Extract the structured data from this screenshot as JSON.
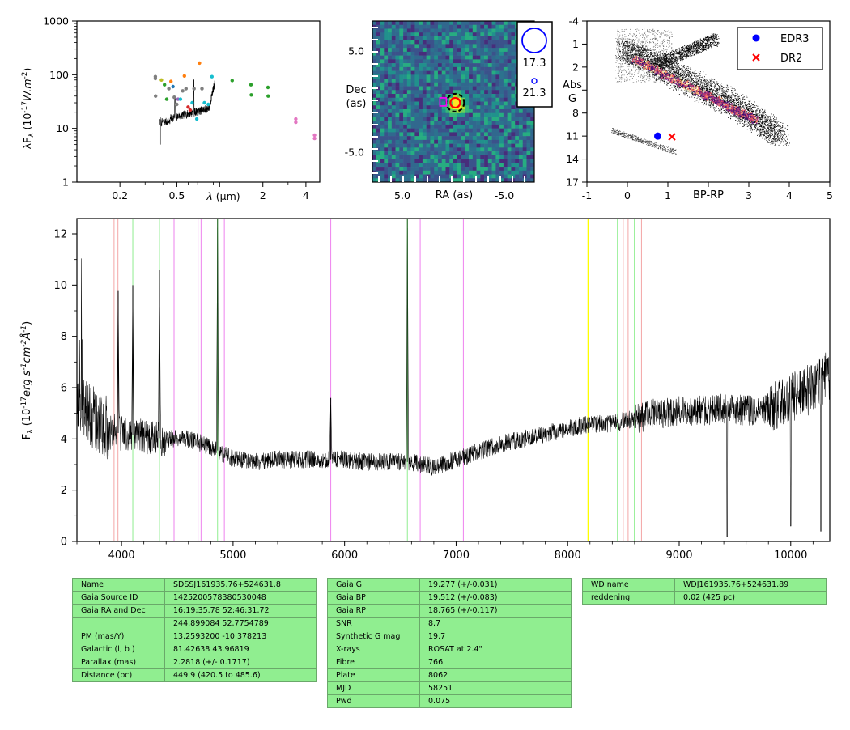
{
  "sed_panel": {
    "ylabel": "λF_λ (10^-17 W.m^-2)",
    "xlabel": "λ (μm)",
    "ytick_labels": [
      "1",
      "10",
      "100",
      "1000"
    ],
    "xtick_labels": [
      "0.2",
      "0.5",
      "2",
      "4"
    ],
    "points": [
      {
        "x": 0.354,
        "y": 92,
        "c": "#7f7f7f"
      },
      {
        "x": 0.354,
        "y": 85,
        "c": "#7f7f7f"
      },
      {
        "x": 0.355,
        "y": 40,
        "c": "#7f7f7f"
      },
      {
        "x": 0.39,
        "y": 80,
        "c": "#bcbd22"
      },
      {
        "x": 0.41,
        "y": 65,
        "c": "#2ca02c"
      },
      {
        "x": 0.425,
        "y": 35,
        "c": "#2ca02c"
      },
      {
        "x": 0.44,
        "y": 55,
        "c": "#7f7f7f"
      },
      {
        "x": 0.455,
        "y": 75,
        "c": "#ff7f0e"
      },
      {
        "x": 0.47,
        "y": 60,
        "c": "#1f77b4"
      },
      {
        "x": 0.48,
        "y": 38,
        "c": "#7f7f7f"
      },
      {
        "x": 0.5,
        "y": 28,
        "c": "#7f7f7f"
      },
      {
        "x": 0.51,
        "y": 35,
        "c": "#9467bd"
      },
      {
        "x": 0.53,
        "y": 35,
        "c": "#17becf"
      },
      {
        "x": 0.55,
        "y": 50,
        "c": "#7f7f7f"
      },
      {
        "x": 0.565,
        "y": 95,
        "c": "#ff7f0e"
      },
      {
        "x": 0.58,
        "y": 55,
        "c": "#7f7f7f"
      },
      {
        "x": 0.6,
        "y": 25,
        "c": "#d62728"
      },
      {
        "x": 0.62,
        "y": 22,
        "c": "#d62728"
      },
      {
        "x": 0.64,
        "y": 30,
        "c": "#17becf"
      },
      {
        "x": 0.66,
        "y": 55,
        "c": "#7f7f7f"
      },
      {
        "x": 0.69,
        "y": 15,
        "c": "#17becf"
      },
      {
        "x": 0.72,
        "y": 165,
        "c": "#ff7f0e"
      },
      {
        "x": 0.75,
        "y": 55,
        "c": "#7f7f7f"
      },
      {
        "x": 0.78,
        "y": 30,
        "c": "#17becf"
      },
      {
        "x": 0.83,
        "y": 28,
        "c": "#17becf"
      },
      {
        "x": 0.88,
        "y": 92,
        "c": "#17becf"
      },
      {
        "x": 1.22,
        "y": 78,
        "c": "#2ca02c"
      },
      {
        "x": 1.65,
        "y": 65,
        "c": "#2ca02c"
      },
      {
        "x": 1.66,
        "y": 42,
        "c": "#2ca02c"
      },
      {
        "x": 2.17,
        "y": 58,
        "c": "#2ca02c"
      },
      {
        "x": 2.18,
        "y": 40,
        "c": "#2ca02c"
      },
      {
        "x": 3.4,
        "y": 15,
        "c": "#e377c2"
      },
      {
        "x": 3.4,
        "y": 13,
        "c": "#e377c2"
      },
      {
        "x": 4.6,
        "y": 7.5,
        "c": "#e377c2"
      },
      {
        "x": 4.6,
        "y": 6.5,
        "c": "#e377c2"
      }
    ]
  },
  "image_panel": {
    "xlabel": "RA (as)",
    "ylabel_1": "Dec",
    "ylabel_2": "(as)",
    "xtick_labels": [
      "5.0",
      "-5.0"
    ],
    "ytick_labels": [
      "5.0",
      "-5.0"
    ],
    "legend": {
      "big": "17.3",
      "small": "21.3"
    },
    "colors": {
      "circle": "#0000ff",
      "target": "#ff0000",
      "marker": "#ff00ff"
    }
  },
  "hrd_panel": {
    "xlabel": "BP-RP",
    "ylabel_1": "Abs",
    "ylabel_2": "G",
    "xtick_labels": [
      "-1",
      "0",
      "1",
      "2",
      "3",
      "4",
      "5"
    ],
    "ytick_labels": [
      "-4",
      "-1",
      "2",
      "5",
      "8",
      "11",
      "14",
      "17"
    ],
    "legend": [
      {
        "label": "EDR3",
        "color": "#0000ff",
        "marker": "circle"
      },
      {
        "label": "DR2",
        "color": "#ff0000",
        "marker": "x"
      }
    ],
    "edr3_point": {
      "x": 0.75,
      "y": 11
    },
    "dr2_point": {
      "x": 1.1,
      "y": 11.1
    }
  },
  "chart_data": {
    "type": "line",
    "xlabel": "",
    "ylabel": "F_λ (10^-17 erg s^-1 cm^-2 Å^-1)",
    "xlim": [
      3600,
      10350
    ],
    "ylim": [
      0,
      12.6
    ],
    "xtick_labels": [
      "4000",
      "5000",
      "6000",
      "7000",
      "8000",
      "9000",
      "10000"
    ],
    "ytick_labels": [
      "0",
      "2",
      "4",
      "6",
      "8",
      "10",
      "12"
    ],
    "continuum": [
      {
        "x": 3600,
        "y": 5.5
      },
      {
        "x": 3700,
        "y": 5.0
      },
      {
        "x": 3800,
        "y": 4.6
      },
      {
        "x": 3900,
        "y": 4.3
      },
      {
        "x": 4000,
        "y": 4.2
      },
      {
        "x": 4200,
        "y": 4.1
      },
      {
        "x": 4400,
        "y": 4.0
      },
      {
        "x": 4600,
        "y": 4.0
      },
      {
        "x": 4800,
        "y": 3.7
      },
      {
        "x": 5000,
        "y": 3.2
      },
      {
        "x": 5200,
        "y": 3.1
      },
      {
        "x": 5400,
        "y": 3.2
      },
      {
        "x": 5600,
        "y": 3.2
      },
      {
        "x": 5800,
        "y": 3.2
      },
      {
        "x": 6000,
        "y": 3.2
      },
      {
        "x": 6200,
        "y": 3.1
      },
      {
        "x": 6400,
        "y": 3.1
      },
      {
        "x": 6600,
        "y": 3.1
      },
      {
        "x": 6800,
        "y": 2.9
      },
      {
        "x": 7000,
        "y": 3.2
      },
      {
        "x": 7200,
        "y": 3.5
      },
      {
        "x": 7400,
        "y": 3.8
      },
      {
        "x": 7600,
        "y": 4.0
      },
      {
        "x": 7800,
        "y": 4.2
      },
      {
        "x": 8000,
        "y": 4.4
      },
      {
        "x": 8200,
        "y": 4.6
      },
      {
        "x": 8400,
        "y": 4.6
      },
      {
        "x": 8600,
        "y": 4.8
      },
      {
        "x": 8800,
        "y": 5.0
      },
      {
        "x": 9000,
        "y": 5.1
      },
      {
        "x": 9200,
        "y": 5.1
      },
      {
        "x": 9400,
        "y": 5.2
      },
      {
        "x": 9600,
        "y": 5.1
      },
      {
        "x": 9800,
        "y": 5.2
      },
      {
        "x": 10000,
        "y": 5.6
      },
      {
        "x": 10200,
        "y": 6.0
      },
      {
        "x": 10350,
        "y": 6.5
      }
    ],
    "emission_lines": [
      {
        "x": 3970,
        "y": 9.8
      },
      {
        "x": 4101,
        "y": 10.0
      },
      {
        "x": 4340,
        "y": 10.6
      },
      {
        "x": 4861,
        "y": 12.6
      },
      {
        "x": 5876,
        "y": 5.6
      },
      {
        "x": 6563,
        "y": 12.6
      }
    ],
    "absorption_dips": [
      {
        "x": 9430,
        "y": 0.2
      },
      {
        "x": 10000,
        "y": 0.6
      },
      {
        "x": 10270,
        "y": 0.4
      }
    ],
    "vlines": [
      {
        "x": 3933,
        "c": "#f4a6a6"
      },
      {
        "x": 3968,
        "c": "#f4a6a6"
      },
      {
        "x": 4101,
        "c": "#90ee90"
      },
      {
        "x": 4340,
        "c": "#90ee90"
      },
      {
        "x": 4471,
        "c": "#ee82ee"
      },
      {
        "x": 4686,
        "c": "#ee82ee"
      },
      {
        "x": 4713,
        "c": "#ee82ee"
      },
      {
        "x": 4861,
        "c": "#90ee90"
      },
      {
        "x": 4922,
        "c": "#ee82ee"
      },
      {
        "x": 5876,
        "c": "#ee82ee"
      },
      {
        "x": 6563,
        "c": "#90ee90"
      },
      {
        "x": 6678,
        "c": "#ee82ee"
      },
      {
        "x": 7065,
        "c": "#ee82ee"
      },
      {
        "x": 8185,
        "c": "#ffff00"
      },
      {
        "x": 8446,
        "c": "#90ee90"
      },
      {
        "x": 8498,
        "c": "#f4a6a6"
      },
      {
        "x": 8542,
        "c": "#f4a6a6"
      },
      {
        "x": 8598,
        "c": "#90ee90"
      },
      {
        "x": 8662,
        "c": "#f4a6a6"
      }
    ]
  },
  "table1": [
    {
      "k": "Name",
      "v": "SDSSJ161935.76+524631.8"
    },
    {
      "k": "Gaia Source ID",
      "v": "1425200578380530048"
    },
    {
      "k": "Gaia RA and Dec",
      "v": "16:19:35.78     52:46:31.72"
    },
    {
      "k": "",
      "v": "244.899084     52.7754789"
    },
    {
      "k": "PM (mas/Y)",
      "v": "13.2593200     -10.378213"
    },
    {
      "k": "Galactic (l, b )",
      "v": "81.42638     43.96819"
    },
    {
      "k": "Parallax (mas)",
      "v": "2.2818 (+/- 0.1717)"
    },
    {
      "k": "Distance (pc)",
      "v": "449.9 (420.5 to 485.6)"
    }
  ],
  "table2": [
    {
      "k": "Gaia G",
      "v": "19.277 (+/-0.031)"
    },
    {
      "k": "Gaia BP",
      "v": "19.512 (+/-0.083)"
    },
    {
      "k": "Gaia RP",
      "v": "18.765 (+/-0.117)"
    },
    {
      "k": "SNR",
      "v": "8.7"
    },
    {
      "k": "Synthetic G mag",
      "v": "19.7"
    },
    {
      "k": "X-rays",
      "v": "ROSAT at 2.4\""
    },
    {
      "k": "Fibre",
      "v": "766"
    },
    {
      "k": "Plate",
      "v": "8062"
    },
    {
      "k": "MJD",
      "v": "58251"
    },
    {
      "k": "Pwd",
      "v": "0.075"
    }
  ],
  "table3": [
    {
      "k": "WD name",
      "v": "WDJ161935.76+524631.89"
    },
    {
      "k": "reddening",
      "v": "0.02 (425 pc)"
    }
  ]
}
